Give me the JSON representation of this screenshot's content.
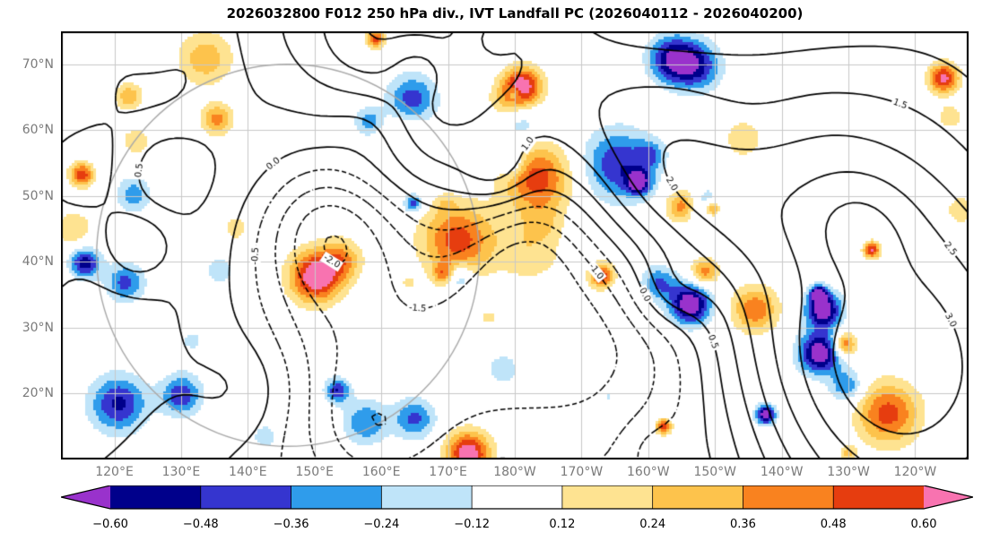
{
  "title": "2026032800 F012 250 hPa div., IVT Landfall PC (2026040112 - 2026040200)",
  "init_time": "2026032800",
  "forecast_hour": "F012",
  "valid_period": "2026040112 - 2026040200",
  "chart_data": {
    "type": "heatmap",
    "subtype": "filled-contour map (250 hPa divergence shading) with overlaid solid/dashed line contours (IVT Landfall PC)",
    "title": "2026032800 F012 250 hPa div., IVT Landfall PC (2026040112 - 2026040200)",
    "region": "North Pacific, cylindrical lat-lon projection",
    "x_tick_labels": [
      "120°E",
      "130°E",
      "140°E",
      "150°E",
      "160°E",
      "170°E",
      "180°W",
      "170°W",
      "160°W",
      "150°W",
      "140°W",
      "130°W",
      "120°W"
    ],
    "x_tick_lons_deg_east": [
      120,
      130,
      140,
      150,
      160,
      170,
      180,
      190,
      200,
      210,
      220,
      230,
      240
    ],
    "y_tick_labels": [
      "70°N",
      "60°N",
      "50°N",
      "40°N",
      "30°N",
      "20°N"
    ],
    "y_tick_lats_deg_north": [
      70,
      60,
      50,
      40,
      30,
      20
    ],
    "lon_range_deg_east": [
      112,
      248
    ],
    "lat_range_deg_north": [
      10,
      75
    ],
    "grid_interval_deg": 10,
    "gridline_color": "#c8c8c8",
    "frame_color": "#000000",
    "tick_label_color": "#7a7a7a",
    "shaded_field": {
      "name": "250 hPa divergence",
      "levels": [
        -0.6,
        -0.48,
        -0.36,
        -0.24,
        -0.12,
        0.12,
        0.24,
        0.36,
        0.48,
        0.6
      ],
      "colors": [
        "#00008b",
        "#3535cf",
        "#2f9ceb",
        "#bfe4f9",
        "#ffffff",
        "#fee391",
        "#fdc34c",
        "#f9821f",
        "#e63d0f"
      ],
      "under_color": "#9932cc",
      "over_color": "#f873b0",
      "colorbar_tick_labels": [
        "−0.60",
        "−0.48",
        "−0.36",
        "−0.24",
        "−0.12",
        "0.12",
        "0.24",
        "0.36",
        "0.48",
        "0.60"
      ],
      "colorbar_extend": "both",
      "colorbar_position": "bottom horizontal"
    },
    "contour_field": {
      "name": "IVT Landfall PC",
      "levels": [
        -3,
        -2.5,
        -2,
        -1.5,
        -1,
        -0.5,
        0,
        0.5,
        1,
        1.5,
        2,
        2.5,
        3
      ],
      "interval": 0.5,
      "color": "#000000",
      "positive_style": "solid",
      "negative_style": "dashed",
      "labels_seen": [
        "-2.0",
        "-1.5",
        "-1.0",
        "-0.5",
        "0.0",
        "0.5",
        "1.0",
        "1.5",
        "2.0",
        "2.5",
        "3.0"
      ]
    },
    "gray_circle": {
      "center_lon_deg_east": 146,
      "center_lat_deg_north": 41,
      "radius_deg": 29,
      "color": "#a9a9a9"
    }
  }
}
